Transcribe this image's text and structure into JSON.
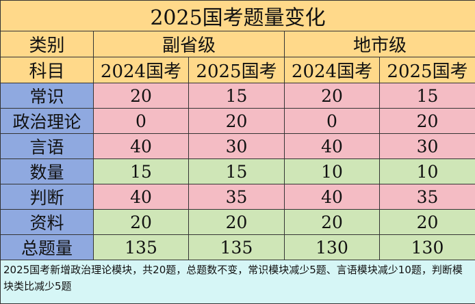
{
  "title": "2025国考题量变化",
  "header": {
    "category_label": "类别",
    "subject_label": "科目",
    "groups": [
      "副省级",
      "地市级"
    ],
    "years": [
      "2024国考",
      "2025国考",
      "2024国考",
      "2025国考"
    ]
  },
  "rows": [
    {
      "subject": "常识",
      "values": [
        "20",
        "15",
        "20",
        "15"
      ],
      "row_color": "#f4bcc4"
    },
    {
      "subject": "政治理论",
      "values": [
        "0",
        "20",
        "0",
        "20"
      ],
      "row_color": "#f4bcc4"
    },
    {
      "subject": "言语",
      "values": [
        "40",
        "30",
        "40",
        "30"
      ],
      "row_color": "#f4bcc4"
    },
    {
      "subject": "数量",
      "values": [
        "15",
        "15",
        "10",
        "10"
      ],
      "row_color": "#cfe6b7"
    },
    {
      "subject": "判断",
      "values": [
        "40",
        "35",
        "40",
        "35"
      ],
      "row_color": "#f4bcc4"
    },
    {
      "subject": "资料",
      "values": [
        "20",
        "20",
        "20",
        "20"
      ],
      "row_color": "#cfe6b7"
    },
    {
      "subject": "总题量",
      "values": [
        "135",
        "135",
        "130",
        "130"
      ],
      "row_color": "#cfe6b7"
    }
  ],
  "note": "2025国考新增政治理论模块，共20题，总题数不变，常识模块减少5题、言语模块减少10题，判断模块类比减少5题",
  "colors": {
    "header_bg": "#ffd98a",
    "label_bg": "#8fa9e0",
    "changed_row_bg": "#f4bcc4",
    "unchanged_row_bg": "#cfe6b7",
    "note_bg": "#d6f6f6"
  }
}
